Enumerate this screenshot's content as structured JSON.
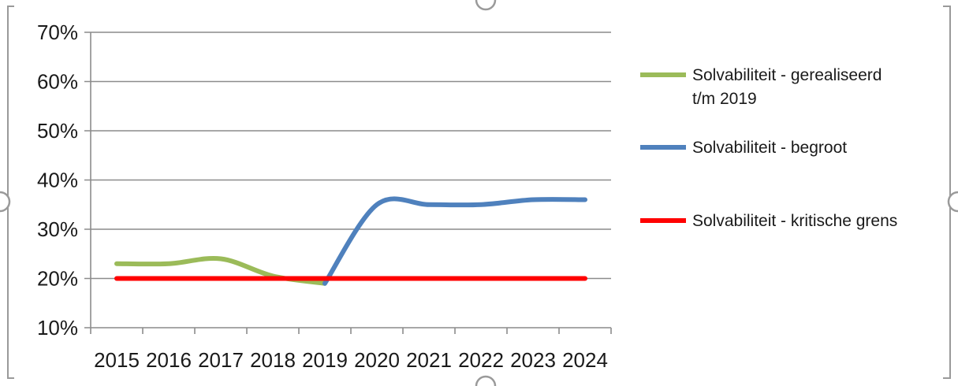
{
  "chart_data": {
    "type": "line",
    "categories": [
      "2015",
      "2016",
      "2017",
      "2018",
      "2019",
      "2020",
      "2021",
      "2022",
      "2023",
      "2024"
    ],
    "y_ticks": [
      "10%",
      "20%",
      "30%",
      "40%",
      "50%",
      "60%",
      "70%"
    ],
    "ylim": [
      10,
      70
    ],
    "grid": true,
    "legend_position": "right",
    "series": [
      {
        "name": "Solvabiliteit - gerealiseerd t/m 2019",
        "legend_lines": [
          "Solvabiliteit - gerealiseerd",
          "t/m 2019"
        ],
        "color": "#9bbb59",
        "values": [
          23,
          23,
          24,
          20.5,
          19,
          null,
          null,
          null,
          null,
          null
        ]
      },
      {
        "name": "Solvabiliteit - begroot",
        "legend_lines": [
          "Solvabiliteit - begroot"
        ],
        "color": "#4f81bd",
        "values": [
          null,
          null,
          null,
          null,
          19,
          35,
          35,
          35,
          36,
          36
        ]
      },
      {
        "name": "Solvabiliteit - kritische grens",
        "legend_lines": [
          "Solvabiliteit - kritische grens"
        ],
        "color": "#ff0000",
        "values": [
          20,
          20,
          20,
          20,
          20,
          20,
          20,
          20,
          20,
          20
        ]
      }
    ]
  }
}
